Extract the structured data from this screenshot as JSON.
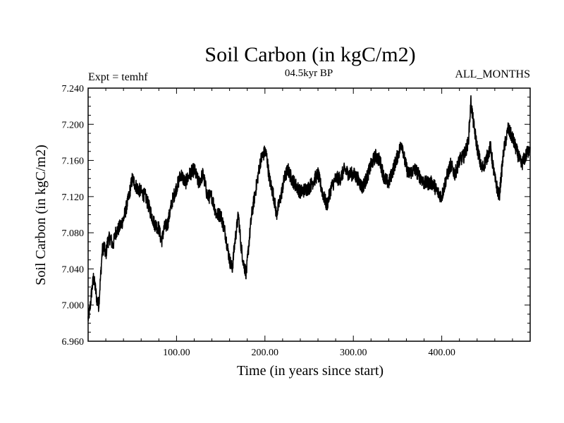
{
  "chart_data": {
    "type": "line",
    "title": "Soil Carbon (in kgC/m2)",
    "subtitle_left": "Expt = temhf",
    "subtitle_center": "04.5kyr BP",
    "subtitle_right": "ALL_MONTHS",
    "xlabel": "Time (in years since start)",
    "ylabel": "Soil Carbon (in kgC/m2)",
    "xlim": [
      0,
      500
    ],
    "ylim": [
      6.96,
      7.24
    ],
    "x_ticks": [
      100,
      200,
      300,
      400
    ],
    "x_tick_labels": [
      "100.00",
      "200.00",
      "300.00",
      "400.00"
    ],
    "y_ticks": [
      6.96,
      7.0,
      7.04,
      7.08,
      7.12,
      7.16,
      7.2,
      7.24
    ],
    "y_tick_labels": [
      "6.960",
      "7.000",
      "7.040",
      "7.080",
      "7.120",
      "7.160",
      "7.200",
      "7.240"
    ],
    "series": [
      {
        "name": "soil carbon",
        "color": "#000000",
        "x": [
          0,
          2,
          4,
          6,
          8,
          10,
          12,
          14,
          16,
          18,
          20,
          22,
          25,
          28,
          31,
          35,
          40,
          45,
          50,
          55,
          60,
          65,
          70,
          75,
          80,
          83,
          86,
          90,
          95,
          100,
          105,
          110,
          115,
          120,
          125,
          130,
          135,
          140,
          145,
          150,
          155,
          160,
          163,
          166,
          170,
          173,
          176,
          179,
          182,
          185,
          190,
          195,
          200,
          202,
          205,
          210,
          213,
          218,
          222,
          226,
          230,
          240,
          250,
          260,
          265,
          270,
          275,
          280,
          285,
          290,
          295,
          300,
          305,
          310,
          315,
          320,
          325,
          330,
          335,
          340,
          345,
          350,
          355,
          358,
          362,
          370,
          380,
          390,
          395,
          400,
          405,
          410,
          415,
          420,
          425,
          430,
          433,
          436,
          440,
          445,
          450,
          455,
          460,
          465,
          470,
          475,
          480,
          485,
          490,
          495,
          500
        ],
        "values": [
          6.985,
          6.995,
          7.015,
          7.03,
          7.02,
          7.005,
          7.0,
          7.03,
          7.06,
          7.065,
          7.055,
          7.07,
          7.075,
          7.065,
          7.08,
          7.085,
          7.095,
          7.115,
          7.14,
          7.13,
          7.125,
          7.12,
          7.105,
          7.09,
          7.085,
          7.07,
          7.085,
          7.09,
          7.115,
          7.13,
          7.145,
          7.135,
          7.145,
          7.15,
          7.135,
          7.145,
          7.12,
          7.12,
          7.1,
          7.1,
          7.08,
          7.05,
          7.04,
          7.07,
          7.1,
          7.065,
          7.045,
          7.035,
          7.07,
          7.1,
          7.13,
          7.16,
          7.17,
          7.165,
          7.14,
          7.12,
          7.1,
          7.12,
          7.14,
          7.15,
          7.14,
          7.125,
          7.13,
          7.145,
          7.125,
          7.11,
          7.13,
          7.14,
          7.14,
          7.15,
          7.145,
          7.145,
          7.14,
          7.13,
          7.14,
          7.155,
          7.165,
          7.16,
          7.14,
          7.135,
          7.15,
          7.165,
          7.18,
          7.16,
          7.145,
          7.15,
          7.135,
          7.135,
          7.125,
          7.12,
          7.14,
          7.155,
          7.145,
          7.16,
          7.165,
          7.18,
          7.225,
          7.2,
          7.175,
          7.15,
          7.16,
          7.175,
          7.14,
          7.12,
          7.17,
          7.195,
          7.185,
          7.17,
          7.155,
          7.165,
          7.175
        ]
      }
    ]
  }
}
